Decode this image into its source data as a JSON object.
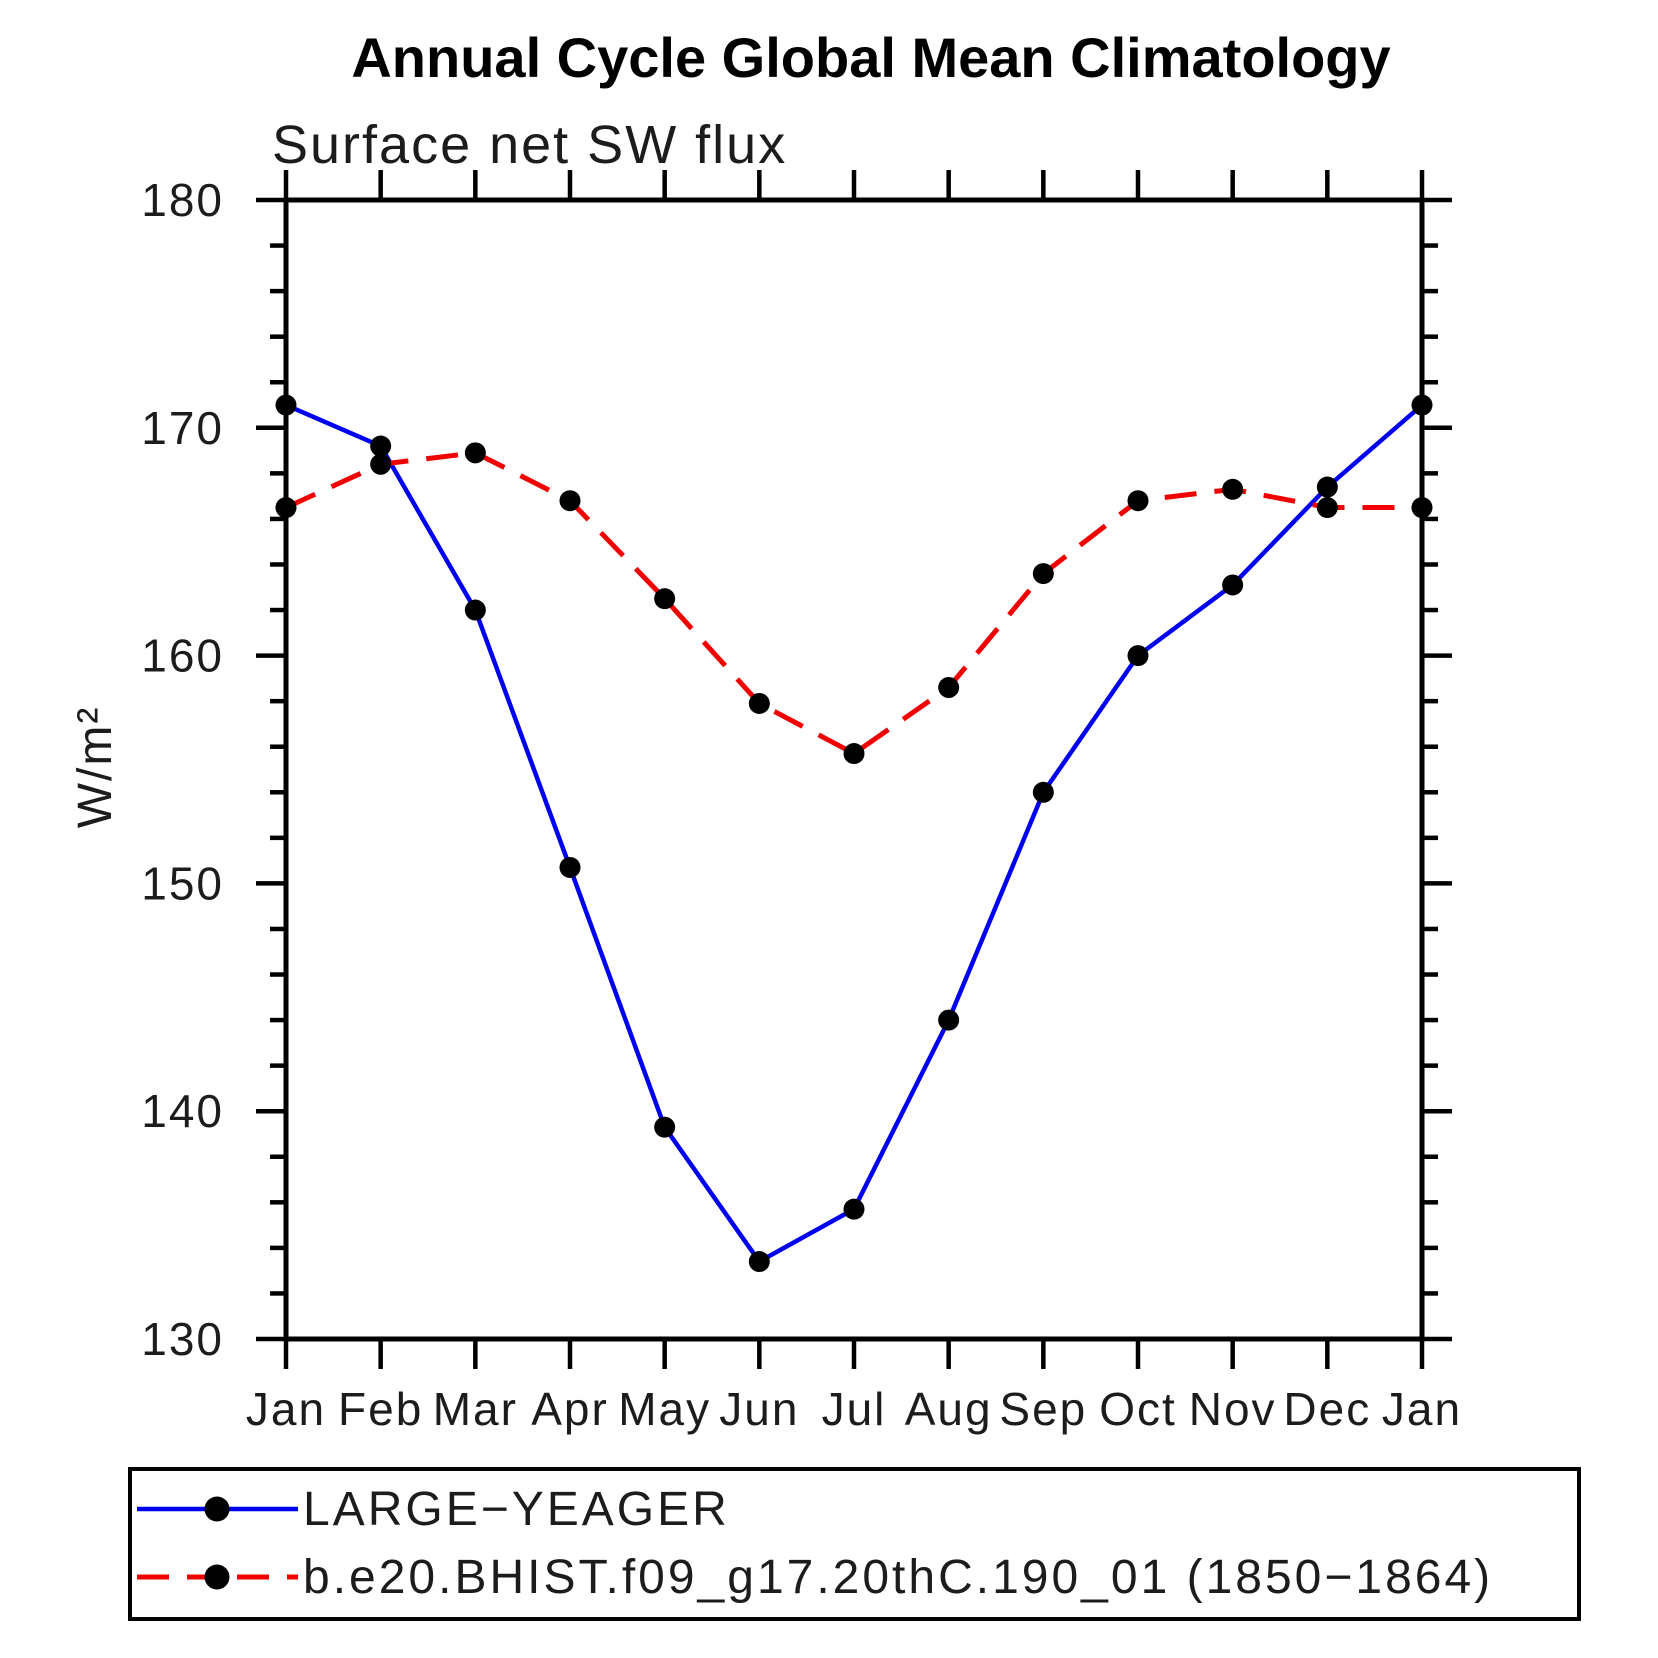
{
  "chart_data": {
    "type": "line",
    "title": "Annual Cycle Global Mean Climatology",
    "subtitle": "Surface net SW flux",
    "ylabel": "W/m²",
    "xlabel": "",
    "categories": [
      "Jan",
      "Feb",
      "Mar",
      "Apr",
      "May",
      "Jun",
      "Jul",
      "Aug",
      "Sep",
      "Oct",
      "Nov",
      "Dec",
      "Jan"
    ],
    "ylim": [
      130,
      180
    ],
    "yticks": [
      180,
      170,
      160,
      150,
      140,
      130
    ],
    "yminor_step": 2,
    "grid": false,
    "legend_position": "bottom-left-box",
    "series": [
      {
        "name": "LARGE−YEAGER",
        "color": "#0000f0",
        "line_style": "solid",
        "marker": "circle",
        "marker_color": "#000000",
        "values": [
          171.0,
          169.2,
          162.0,
          150.7,
          139.3,
          133.4,
          135.7,
          144.0,
          154.0,
          160.0,
          163.1,
          167.4,
          171.0
        ]
      },
      {
        "name": "b.e20.BHIST.f09_g17.20thC.190_01 (1850−1864)",
        "color": "#f00000",
        "line_style": "dashed",
        "marker": "circle",
        "marker_color": "#000000",
        "values": [
          166.5,
          168.4,
          168.9,
          166.8,
          162.5,
          157.9,
          155.7,
          158.6,
          163.6,
          166.8,
          167.3,
          166.5,
          166.5
        ]
      }
    ]
  }
}
